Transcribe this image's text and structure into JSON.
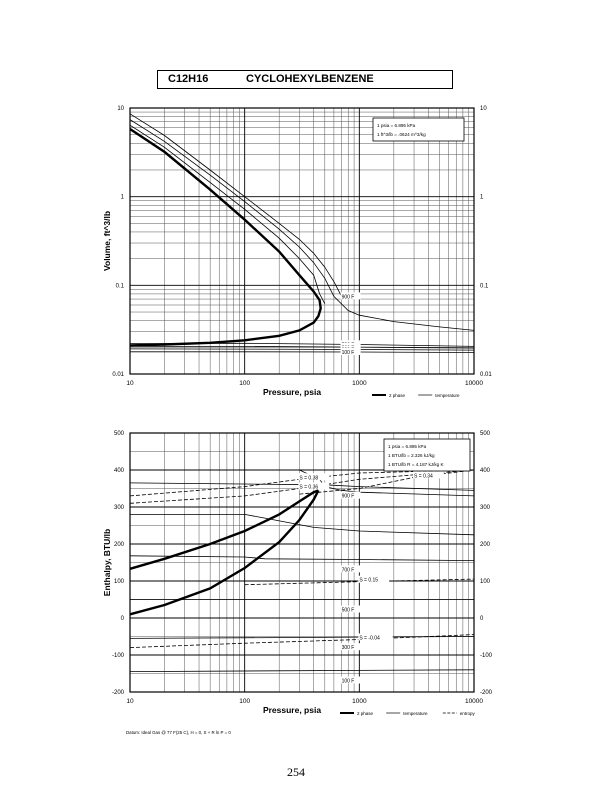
{
  "header": {
    "formula": "C12H16",
    "compound": "CYCLOHEXYLBENZENE"
  },
  "page_number": "254",
  "chart_data": [
    {
      "type": "line",
      "id": "volume",
      "xlabel": "Pressure,  psia",
      "ylabel": "Volume, ft^3/lb",
      "x_scale": "log",
      "y_scale": "log",
      "xlim": [
        10,
        10000
      ],
      "ylim": [
        0.01,
        10
      ],
      "grid": true,
      "x_ticks": [
        {
          "value": 10,
          "label": "10"
        },
        {
          "value": 100,
          "label": "100"
        },
        {
          "value": 1000,
          "label": "1000"
        },
        {
          "value": 10000,
          "label": "10000"
        }
      ],
      "y_ticks": [
        {
          "value": 10,
          "label": "10"
        },
        {
          "value": 1,
          "label": "1"
        },
        {
          "value": 0.1,
          "label": "0.1"
        },
        {
          "value": 0.01,
          "label": "0.01"
        }
      ],
      "conversion_note": [
        "1 psia  =  6.895 kPa",
        "1 ft^3/lb  =  .0624 m^3/kg"
      ],
      "legend": [
        {
          "label": "2 phase",
          "style": "thick"
        },
        {
          "label": "temperature",
          "style": "thin"
        }
      ],
      "series": [
        {
          "kind": "2 phase",
          "style": "thick",
          "points": [
            [
              10,
              5.8
            ],
            [
              20,
              3.2
            ],
            [
              50,
              1.2
            ],
            [
              100,
              0.55
            ],
            [
              200,
              0.24
            ],
            [
              300,
              0.13
            ],
            [
              400,
              0.085
            ],
            [
              450,
              0.068
            ],
            [
              460,
              0.055
            ],
            [
              440,
              0.045
            ],
            [
              400,
              0.038
            ],
            [
              300,
              0.031
            ],
            [
              200,
              0.027
            ],
            [
              100,
              0.024
            ],
            [
              50,
              0.0225
            ],
            [
              20,
              0.0215
            ],
            [
              10,
              0.021
            ]
          ]
        },
        {
          "kind": "temperature",
          "style": "thin",
          "points": [
            [
              10,
              6.4
            ],
            [
              20,
              3.6
            ],
            [
              50,
              1.45
            ],
            [
              100,
              0.72
            ],
            [
              200,
              0.34
            ],
            [
              300,
              0.2
            ],
            [
              400,
              0.13
            ],
            [
              450,
              0.08
            ],
            [
              500,
              0.062
            ]
          ]
        },
        {
          "kind": "temperature",
          "style": "thin",
          "points": [
            [
              10,
              7.4
            ],
            [
              20,
              4.2
            ],
            [
              50,
              1.75
            ],
            [
              100,
              0.88
            ],
            [
              200,
              0.43
            ],
            [
              300,
              0.27
            ],
            [
              400,
              0.18
            ],
            [
              500,
              0.12
            ],
            [
              600,
              0.075
            ],
            [
              800,
              0.052
            ],
            [
              1000,
              0.046
            ],
            [
              2000,
              0.039
            ],
            [
              5000,
              0.034
            ],
            [
              10000,
              0.031
            ]
          ]
        },
        {
          "kind": "temperature",
          "style": "thin",
          "label": "900 F",
          "points": [
            [
              10,
              8.6
            ],
            [
              20,
              4.9
            ],
            [
              50,
              2.0
            ],
            [
              100,
              1.0
            ],
            [
              200,
              0.5
            ],
            [
              300,
              0.33
            ],
            [
              400,
              0.23
            ],
            [
              500,
              0.16
            ],
            [
              600,
              0.11
            ],
            [
              700,
              0.075
            ]
          ]
        },
        {
          "kind": "temperature",
          "style": "thin",
          "label": "700 F",
          "points": [
            [
              10,
              0.022
            ],
            [
              100,
              0.0222
            ],
            [
              1000,
              0.0215
            ],
            [
              10000,
              0.0205
            ]
          ]
        },
        {
          "kind": "temperature",
          "style": "thin",
          "label": "500 F",
          "points": [
            [
              10,
              0.0205
            ],
            [
              100,
              0.0205
            ],
            [
              1000,
              0.0201
            ],
            [
              10000,
              0.0196
            ]
          ]
        },
        {
          "kind": "temperature",
          "style": "thin",
          "label": "300 F",
          "points": [
            [
              10,
              0.0192
            ],
            [
              100,
              0.0191
            ],
            [
              1000,
              0.0189
            ],
            [
              10000,
              0.0186
            ]
          ]
        },
        {
          "kind": "temperature",
          "style": "thin",
          "label": "100 F",
          "points": [
            [
              10,
              0.0178
            ],
            [
              100,
              0.0178
            ],
            [
              1000,
              0.0177
            ],
            [
              10000,
              0.0175
            ]
          ]
        }
      ]
    },
    {
      "type": "line",
      "id": "enthalpy",
      "xlabel": "Pressure,  psia",
      "ylabel": "Enthalpy, BTU/lb",
      "x_scale": "log",
      "y_scale": "linear",
      "xlim": [
        10,
        10000
      ],
      "ylim": [
        -200,
        500
      ],
      "grid": true,
      "x_ticks": [
        {
          "value": 10,
          "label": "10"
        },
        {
          "value": 100,
          "label": "100"
        },
        {
          "value": 1000,
          "label": "1000"
        },
        {
          "value": 10000,
          "label": "10000"
        }
      ],
      "y_ticks": [
        {
          "value": 500,
          "label": "500"
        },
        {
          "value": 400,
          "label": "400"
        },
        {
          "value": 300,
          "label": "300"
        },
        {
          "value": 200,
          "label": "200"
        },
        {
          "value": 100,
          "label": "100"
        },
        {
          "value": 0,
          "label": "0"
        },
        {
          "value": -100,
          "label": "-100"
        },
        {
          "value": -200,
          "label": "-200"
        }
      ],
      "conversion_note": [
        "1 psia  =  6.895 kPa",
        "1 BTU/lb  =  2.326 kJ/kg",
        "1 BTU/lb R  =  4.187 kJ/kg K"
      ],
      "legend": [
        {
          "label": "2 phase",
          "style": "thick"
        },
        {
          "label": "temperature",
          "style": "thin"
        },
        {
          "label": "entropy",
          "style": "dashed"
        }
      ],
      "datum_note": "Datum: Ideal Gas @ 77 F(25 C),  H = 0,  S + R ln P = 0",
      "series": [
        {
          "kind": "2 phase",
          "style": "thick",
          "points": [
            [
              10,
              133
            ],
            [
              20,
              160
            ],
            [
              50,
              200
            ],
            [
              100,
              235
            ],
            [
              200,
              280
            ],
            [
              300,
              315
            ],
            [
              400,
              340
            ],
            [
              440,
              345
            ]
          ]
        },
        {
          "kind": "2 phase",
          "style": "thick",
          "points": [
            [
              10,
              10
            ],
            [
              20,
              35
            ],
            [
              50,
              80
            ],
            [
              100,
              135
            ],
            [
              200,
              205
            ],
            [
              300,
              265
            ],
            [
              400,
              320
            ],
            [
              440,
              345
            ]
          ]
        },
        {
          "kind": "temperature",
          "style": "thin",
          "points": [
            [
              10,
              400
            ],
            [
              300,
              400
            ],
            [
              450,
              375
            ],
            [
              500,
              355
            ],
            [
              700,
              345
            ],
            [
              1000,
              340
            ],
            [
              10000,
              330
            ]
          ]
        },
        {
          "kind": "temperature",
          "style": "thin",
          "label": "900 F",
          "points": [
            [
              10,
              365
            ],
            [
              500,
              360
            ],
            [
              1000,
              355
            ],
            [
              10000,
              345
            ]
          ]
        },
        {
          "kind": "temperature",
          "style": "thin",
          "points": [
            [
              10,
              280
            ],
            [
              100,
              280
            ],
            [
              150,
              270
            ],
            [
              400,
              245
            ],
            [
              1000,
              235
            ],
            [
              10000,
              225
            ]
          ]
        },
        {
          "kind": "temperature",
          "style": "thin",
          "label": "700 F",
          "points": [
            [
              10,
              168
            ],
            [
              100,
              165
            ],
            [
              150,
              160
            ],
            [
              1000,
              158
            ],
            [
              10000,
              155
            ]
          ]
        },
        {
          "kind": "temperature",
          "style": "thin",
          "label": "500 F",
          "points": [
            [
              10,
              50
            ],
            [
              10000,
              50
            ]
          ]
        },
        {
          "kind": "temperature",
          "style": "thin",
          "label": "300 F",
          "points": [
            [
              10,
              -55
            ],
            [
              10000,
              -50
            ]
          ]
        },
        {
          "kind": "temperature",
          "style": "thin",
          "label": "100 F",
          "points": [
            [
              10,
              -145
            ],
            [
              10000,
              -140
            ]
          ]
        },
        {
          "kind": "entropy",
          "style": "dashed",
          "label": "S = 0.38",
          "points": [
            [
              10,
              330
            ],
            [
              100,
              355
            ],
            [
              300,
              375
            ],
            [
              1000,
              392
            ],
            [
              10000,
              400
            ]
          ]
        },
        {
          "kind": "entropy",
          "style": "dashed",
          "label": "S = 0.36",
          "points": [
            [
              10,
              310
            ],
            [
              100,
              330
            ],
            [
              300,
              350
            ],
            [
              1000,
              375
            ],
            [
              10000,
              400
            ]
          ]
        },
        {
          "kind": "entropy",
          "style": "dashed",
          "label": "S = 0.34",
          "points": [
            [
              300,
              335
            ],
            [
              1000,
              350
            ],
            [
              3000,
              380
            ],
            [
              10000,
              400
            ]
          ]
        },
        {
          "kind": "entropy",
          "style": "dashed",
          "label": "S = 0.15",
          "points": [
            [
              100,
              90
            ],
            [
              1000,
              98
            ],
            [
              10000,
              105
            ]
          ]
        },
        {
          "kind": "entropy",
          "style": "dashed",
          "label": "S = -0.04",
          "points": [
            [
              10,
              -80
            ],
            [
              100,
              -68
            ],
            [
              1000,
              -58
            ],
            [
              10000,
              -45
            ]
          ]
        }
      ]
    }
  ]
}
